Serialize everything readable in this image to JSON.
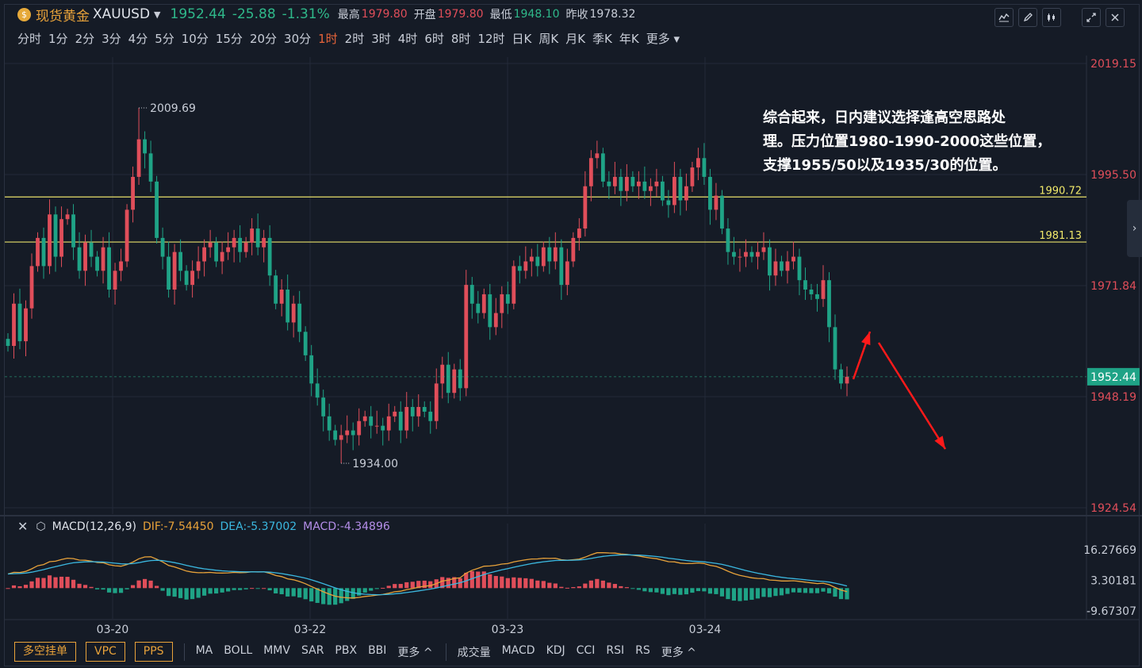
{
  "header": {
    "title": "现货黄金",
    "symbol": "XAUUSD",
    "last": "1952.44",
    "change": "-25.88",
    "change_pct": "-1.31%",
    "high_label": "最高",
    "high": "1979.80",
    "open_label": "开盘",
    "open": "1979.80",
    "low_label": "最低",
    "low": "1948.10",
    "prev_label": "昨收",
    "prev": "1978.32"
  },
  "periods": [
    "分时",
    "1分",
    "2分",
    "3分",
    "4分",
    "5分",
    "10分",
    "15分",
    "20分",
    "30分",
    "1时",
    "2时",
    "3时",
    "4时",
    "6时",
    "8时",
    "12时",
    "日K",
    "周K",
    "月K",
    "季K",
    "年K",
    "更多"
  ],
  "active_period": "1时",
  "annotation": {
    "lines": [
      "综合起来，日内建议选择逢高空思路处",
      "理。压力位置1980-1990-2000这些位置，",
      "支撑1955/50以及1935/30的位置。"
    ]
  },
  "macd_header": {
    "name": "MACD(12,26,9)",
    "dif": "DIF:-7.54450",
    "dea": "DEA:-5.37002",
    "macd": "MACD:-4.34896"
  },
  "bottom_toolbar": {
    "buttons": [
      "多空挂单",
      "VPC",
      "PPS"
    ],
    "indicators_main": [
      "MA",
      "BOLL",
      "MMV",
      "SAR",
      "PBX",
      "BBI",
      "更多 ^"
    ],
    "indicators_sub": [
      "成交量",
      "MACD",
      "KDJ",
      "CCI",
      "RSI",
      "RS",
      "更多 ^"
    ]
  },
  "colors": {
    "up": "#e04e5a",
    "down": "#1fa386",
    "bg": "#151b26",
    "hline": "#e8e06a",
    "arrow": "#ff1a1a",
    "dif": "#e8a23a",
    "dea": "#3bb8e0"
  },
  "chart_data": [
    {
      "type": "candlestick",
      "symbol": "XAUUSD",
      "interval": "1时",
      "ylim": [
        1924.54,
        2019.15
      ],
      "y_ticks": [
        "2019.15",
        "1995.50",
        "1971.84",
        "1948.19",
        "1924.54"
      ],
      "x_ticks": [
        "03-20",
        "03-22",
        "03-23",
        "03-24"
      ],
      "current_price": "1952.44",
      "marked_high": "2009.69",
      "marked_low": "1934.00",
      "levels": [
        "1990.72",
        "1981.13"
      ],
      "closes": [
        1959,
        1968,
        1960,
        1967,
        1976,
        1982,
        1976,
        1987,
        1978,
        1986,
        1987,
        1980,
        1975,
        1981,
        1978,
        1975,
        1980,
        1971,
        1975,
        1977,
        1988,
        1995,
        2003,
        2000,
        1994,
        1982,
        1978,
        1971,
        1979,
        1975,
        1972,
        1975,
        1977,
        1980,
        1981,
        1977,
        1979,
        1980,
        1982,
        1979,
        1981,
        1984,
        1980,
        1982,
        1974,
        1968,
        1971,
        1964,
        1968,
        1962,
        1957,
        1951,
        1948,
        1944,
        1941,
        1939,
        1940,
        1941,
        1940,
        1943,
        1944,
        1942,
        1942,
        1941,
        1944,
        1945,
        1941,
        1946,
        1944,
        1946,
        1945,
        1943,
        1951,
        1955,
        1949,
        1954,
        1950,
        1972,
        1968,
        1966,
        1970,
        1963,
        1966,
        1970,
        1968,
        1976,
        1975,
        1977,
        1978,
        1976,
        1980,
        1977,
        1980,
        1972,
        1977,
        1982,
        1984,
        1993,
        1999,
        2000,
        1994,
        1993,
        1995,
        1992,
        1995,
        1993,
        1994,
        1992,
        1993,
        1994,
        1990,
        1989,
        1995,
        1990,
        1993,
        1997,
        1999,
        1995,
        1988,
        1991,
        1984,
        1979,
        1978,
        1978,
        1979,
        1978,
        1979,
        1980,
        1974,
        1977,
        1975,
        1977,
        1978,
        1973,
        1971,
        1970,
        1969,
        1973,
        1963,
        1954,
        1951,
        1952.44
      ],
      "macd": {
        "dif_range": [
          -9.67307,
          16.27669
        ],
        "labels": [
          "16.27669",
          "3.30181",
          "-9.67307"
        ]
      }
    }
  ]
}
